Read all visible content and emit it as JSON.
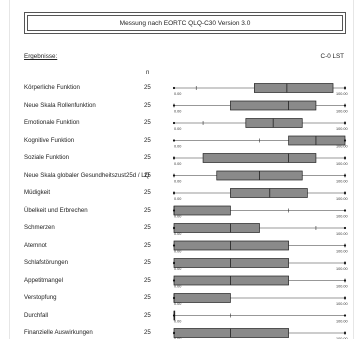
{
  "title": "Messung nach EORTC QLQ-C30 Version 3.0",
  "results_label": "Ergebnisse:",
  "id_label": "C-0 LST",
  "n_header": "n",
  "chart_data": {
    "type": "boxplot",
    "xlim": [
      0,
      100
    ],
    "tick_labels": [
      "0.00",
      "100.00"
    ],
    "rows": [
      {
        "label": "Körperliche Funktion",
        "n": "25",
        "min": 0,
        "whisker_low": 13,
        "q1": 47,
        "median": 66,
        "q3": 93,
        "whisker_high": 100,
        "max": 100
      },
      {
        "label": "Neue Skala Rollenfunktion",
        "n": "25",
        "min": 0,
        "whisker_low": 0,
        "q1": 33,
        "median": 67,
        "q3": 83,
        "whisker_high": 100,
        "max": 100
      },
      {
        "label": "Emotionale Funktion",
        "n": "25",
        "min": 0,
        "whisker_low": 17,
        "q1": 42,
        "median": 58,
        "q3": 75,
        "whisker_high": 100,
        "max": 100
      },
      {
        "label": "Kognitive Funktion",
        "n": "25",
        "min": 0,
        "whisker_low": 50,
        "q1": 67,
        "median": 83,
        "q3": 100,
        "whisker_high": 100,
        "max": 100
      },
      {
        "label": "Soziale Funktion",
        "n": "25",
        "min": 0,
        "whisker_low": 0,
        "q1": 17,
        "median": 67,
        "q3": 83,
        "whisker_high": 100,
        "max": 100
      },
      {
        "label": "Neue Skala globaler Gesundheitszust25d / LQ",
        "n": "25",
        "min": 0,
        "whisker_low": 0,
        "q1": 25,
        "median": 50,
        "q3": 75,
        "whisker_high": 100,
        "max": 100
      },
      {
        "label": "Müdigkeit",
        "n": "25",
        "min": 0,
        "whisker_low": 0,
        "q1": 33,
        "median": 56,
        "q3": 78,
        "whisker_high": 100,
        "max": 100
      },
      {
        "label": "Übelkeit und Erbrechen",
        "n": "25",
        "min": 0,
        "whisker_low": 0,
        "q1": 0,
        "median": 0,
        "q3": 33,
        "whisker_high": 67,
        "max": 100
      },
      {
        "label": "Schmerzen",
        "n": "25",
        "min": 0,
        "whisker_low": 0,
        "q1": 0,
        "median": 33,
        "q3": 50,
        "whisker_high": 83,
        "max": 100
      },
      {
        "label": "Atemnot",
        "n": "25",
        "min": 0,
        "whisker_low": 0,
        "q1": 0,
        "median": 33,
        "q3": 67,
        "whisker_high": 100,
        "max": 100
      },
      {
        "label": "Schlafstörungen",
        "n": "25",
        "min": 0,
        "whisker_low": 0,
        "q1": 0,
        "median": 33,
        "q3": 67,
        "whisker_high": 100,
        "max": 100
      },
      {
        "label": "Appetitmangel",
        "n": "25",
        "min": 0,
        "whisker_low": 0,
        "q1": 0,
        "median": 33,
        "q3": 67,
        "whisker_high": 100,
        "max": 100
      },
      {
        "label": "Verstopfung",
        "n": "25",
        "min": 0,
        "whisker_low": 0,
        "q1": 0,
        "median": 0,
        "q3": 33,
        "whisker_high": 100,
        "max": 100
      },
      {
        "label": "Durchfall",
        "n": "25",
        "min": 0,
        "whisker_low": 0,
        "q1": 0,
        "median": 0,
        "q3": 0,
        "whisker_high": 33,
        "max": 100
      },
      {
        "label": "Finanzielle Auswirkungen",
        "n": "25",
        "min": 0,
        "whisker_low": 0,
        "q1": 0,
        "median": 33,
        "q3": 67,
        "whisker_high": 100,
        "max": 100
      }
    ]
  }
}
